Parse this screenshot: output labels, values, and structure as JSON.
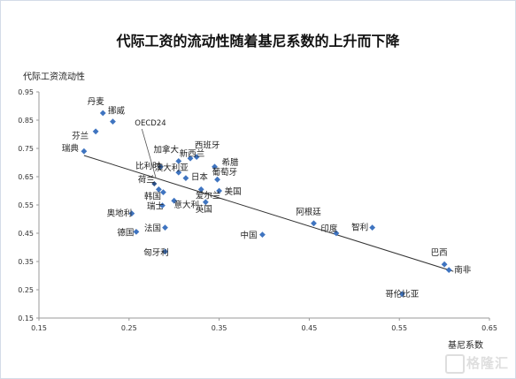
{
  "chart_data": {
    "type": "scatter",
    "title": "代际工资的流动性随着基尼系数的上升而下降",
    "ylabel": "代际工资流动性",
    "xlabel": "基尼系数",
    "xlim": [
      0.15,
      0.65
    ],
    "ylim": [
      0.15,
      0.95
    ],
    "xticks": [
      "0.15",
      "0.25",
      "0.35",
      "0.45",
      "0.55",
      "0.65"
    ],
    "yticks": [
      "0.95",
      "0.85",
      "0.75",
      "0.65",
      "0.55",
      "0.45",
      "0.35",
      "0.25",
      "0.15"
    ],
    "grid": false,
    "trendline": {
      "x": [
        0.2,
        0.61
      ],
      "y": [
        0.725,
        0.315
      ]
    },
    "callout": {
      "label": "OECD24",
      "x": 0.278,
      "y": 0.625
    },
    "points": [
      {
        "label": "丹麦",
        "x": 0.221,
        "y": 0.875
      },
      {
        "label": "挪威",
        "x": 0.232,
        "y": 0.845
      },
      {
        "label": "芬兰",
        "x": 0.213,
        "y": 0.81
      },
      {
        "label": "瑞典",
        "x": 0.2,
        "y": 0.74
      },
      {
        "label": "加拿大",
        "x": 0.305,
        "y": 0.705
      },
      {
        "label": "新西兰",
        "x": 0.318,
        "y": 0.715
      },
      {
        "label": "西班牙",
        "x": 0.325,
        "y": 0.72
      },
      {
        "label": "希腊",
        "x": 0.345,
        "y": 0.685
      },
      {
        "label": "比利时",
        "x": 0.285,
        "y": 0.685
      },
      {
        "label": "澳大利亚",
        "x": 0.305,
        "y": 0.665
      },
      {
        "label": "日本",
        "x": 0.313,
        "y": 0.645
      },
      {
        "label": "葡萄牙",
        "x": 0.348,
        "y": 0.64
      },
      {
        "label": "荷兰",
        "x": 0.283,
        "y": 0.605
      },
      {
        "label": "韩国",
        "x": 0.288,
        "y": 0.595
      },
      {
        "label": "爱尔兰",
        "x": 0.33,
        "y": 0.605
      },
      {
        "label": "美国",
        "x": 0.35,
        "y": 0.6
      },
      {
        "label": "瑞士",
        "x": 0.287,
        "y": 0.548
      },
      {
        "label": "意大利",
        "x": 0.3,
        "y": 0.565
      },
      {
        "label": "英国",
        "x": 0.335,
        "y": 0.56
      },
      {
        "label": "奥地利",
        "x": 0.253,
        "y": 0.52
      },
      {
        "label": "法国",
        "x": 0.29,
        "y": 0.47
      },
      {
        "label": "德国",
        "x": 0.258,
        "y": 0.455
      },
      {
        "label": "匈牙利",
        "x": 0.29,
        "y": 0.385
      },
      {
        "label": "中国",
        "x": 0.398,
        "y": 0.445
      },
      {
        "label": "阿根廷",
        "x": 0.455,
        "y": 0.485
      },
      {
        "label": "印度",
        "x": 0.48,
        "y": 0.45
      },
      {
        "label": "智利",
        "x": 0.52,
        "y": 0.47
      },
      {
        "label": "巴西",
        "x": 0.6,
        "y": 0.34
      },
      {
        "label": "南非",
        "x": 0.605,
        "y": 0.32
      },
      {
        "label": "哥伦比亚",
        "x": 0.553,
        "y": 0.235
      }
    ]
  },
  "watermark": {
    "text": "格隆汇"
  },
  "colors": {
    "marker": "#3f74c0",
    "axis": "#9a9a9a",
    "trend": "#333333",
    "frame": "#d4dbe8"
  }
}
